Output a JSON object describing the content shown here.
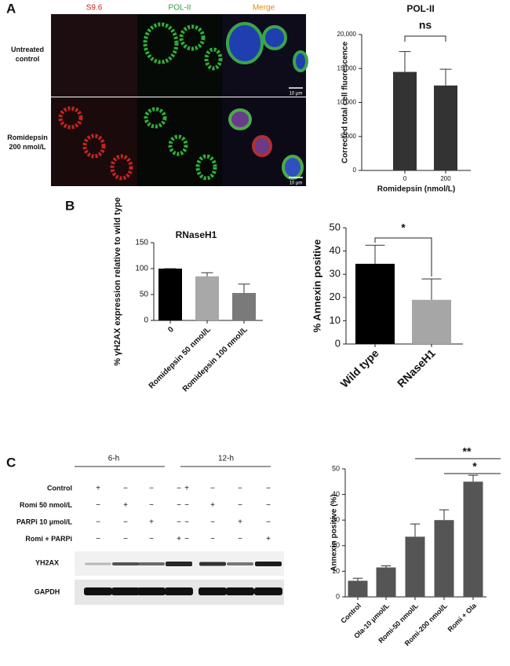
{
  "panels": [
    "A",
    "B",
    "C"
  ],
  "microscopy": {
    "columns": [
      "S9.6",
      "POL-II",
      "Merge"
    ],
    "rows": [
      "Untreated control",
      "Romidepsin 200 nmol/L"
    ],
    "scale_bar": "10 µm"
  },
  "blot": {
    "groups": [
      "6-h",
      "12-h"
    ],
    "conditions": [
      "Control",
      "Romi 50 nmol/L",
      "PARPi 10 µmol/L",
      "Romi + PARPi"
    ],
    "signs": [
      [
        "+",
        "−",
        "−",
        "−",
        "+",
        "−",
        "−",
        "−"
      ],
      [
        "−",
        "+",
        "−",
        "−",
        "−",
        "+",
        "−",
        "−"
      ],
      [
        "−",
        "−",
        "+",
        "−",
        "−",
        "−",
        "+",
        "−"
      ],
      [
        "−",
        "−",
        "−",
        "+",
        "−",
        "−",
        "−",
        "+"
      ]
    ],
    "bands": [
      "YH2AX",
      "GAPDH"
    ]
  },
  "chart_data": [
    {
      "type": "bar",
      "title": "POL-II",
      "x_label": "Romidepsin (nmol/L)",
      "y_label": "Corrected total cell fluorescence",
      "categories": [
        "0",
        "200"
      ],
      "values": [
        14500,
        12500
      ],
      "errors": [
        3000,
        2400
      ],
      "colors": [
        "#333333",
        "#333333"
      ],
      "ylim": [
        0,
        20000
      ],
      "yticks": [
        0,
        {
          "value": 5000,
          "label": "5,000"
        },
        {
          "value": 10000,
          "label": "10,000"
        },
        {
          "value": 15000,
          "label": "15,000"
        },
        {
          "value": 20000,
          "label": "20,000"
        }
      ],
      "annotations": [
        "ns"
      ]
    },
    {
      "type": "bar",
      "title": "RNaseH1",
      "y_label": "% γH2AX expression relative to wild type",
      "categories": [
        "0",
        "Romidepsin 50 nmol/L",
        "Romidepsin 100 nmol/L"
      ],
      "values": [
        100,
        85,
        53
      ],
      "errors": [
        0,
        7,
        17
      ],
      "colors": [
        "#000000",
        "#a8a8a8",
        "#7a7a7a"
      ],
      "ylim": [
        0,
        150
      ],
      "yticks": [
        0,
        50,
        100,
        150
      ]
    },
    {
      "type": "bar",
      "y_label": "% Annexin positive",
      "categories": [
        "Wild type",
        "RNaseH1"
      ],
      "values": [
        34.5,
        19
      ],
      "errors": [
        8,
        9
      ],
      "colors": [
        "#000000",
        "#a6a6a6"
      ],
      "ylim": [
        0,
        50
      ],
      "yticks": [
        0,
        10,
        20,
        30,
        40,
        50
      ],
      "annotations": [
        "*"
      ]
    },
    {
      "type": "bar",
      "y_label": "Annexin positive (%)",
      "categories": [
        "Control",
        "Ola-10 µmol/L",
        "Romi-50 nmol/L",
        "Romi-200 nmol/L",
        "Romi + Ola"
      ],
      "values": [
        6.3,
        11.5,
        23.5,
        30,
        45
      ],
      "errors": [
        1,
        0.6,
        5,
        4,
        2.5
      ],
      "colors": [
        "#555555",
        "#555555",
        "#555555",
        "#555555",
        "#555555"
      ],
      "ylim": [
        0,
        50
      ],
      "yticks": [
        0,
        10,
        20,
        30,
        40,
        50
      ],
      "annotations": [
        "**",
        "*"
      ]
    }
  ]
}
